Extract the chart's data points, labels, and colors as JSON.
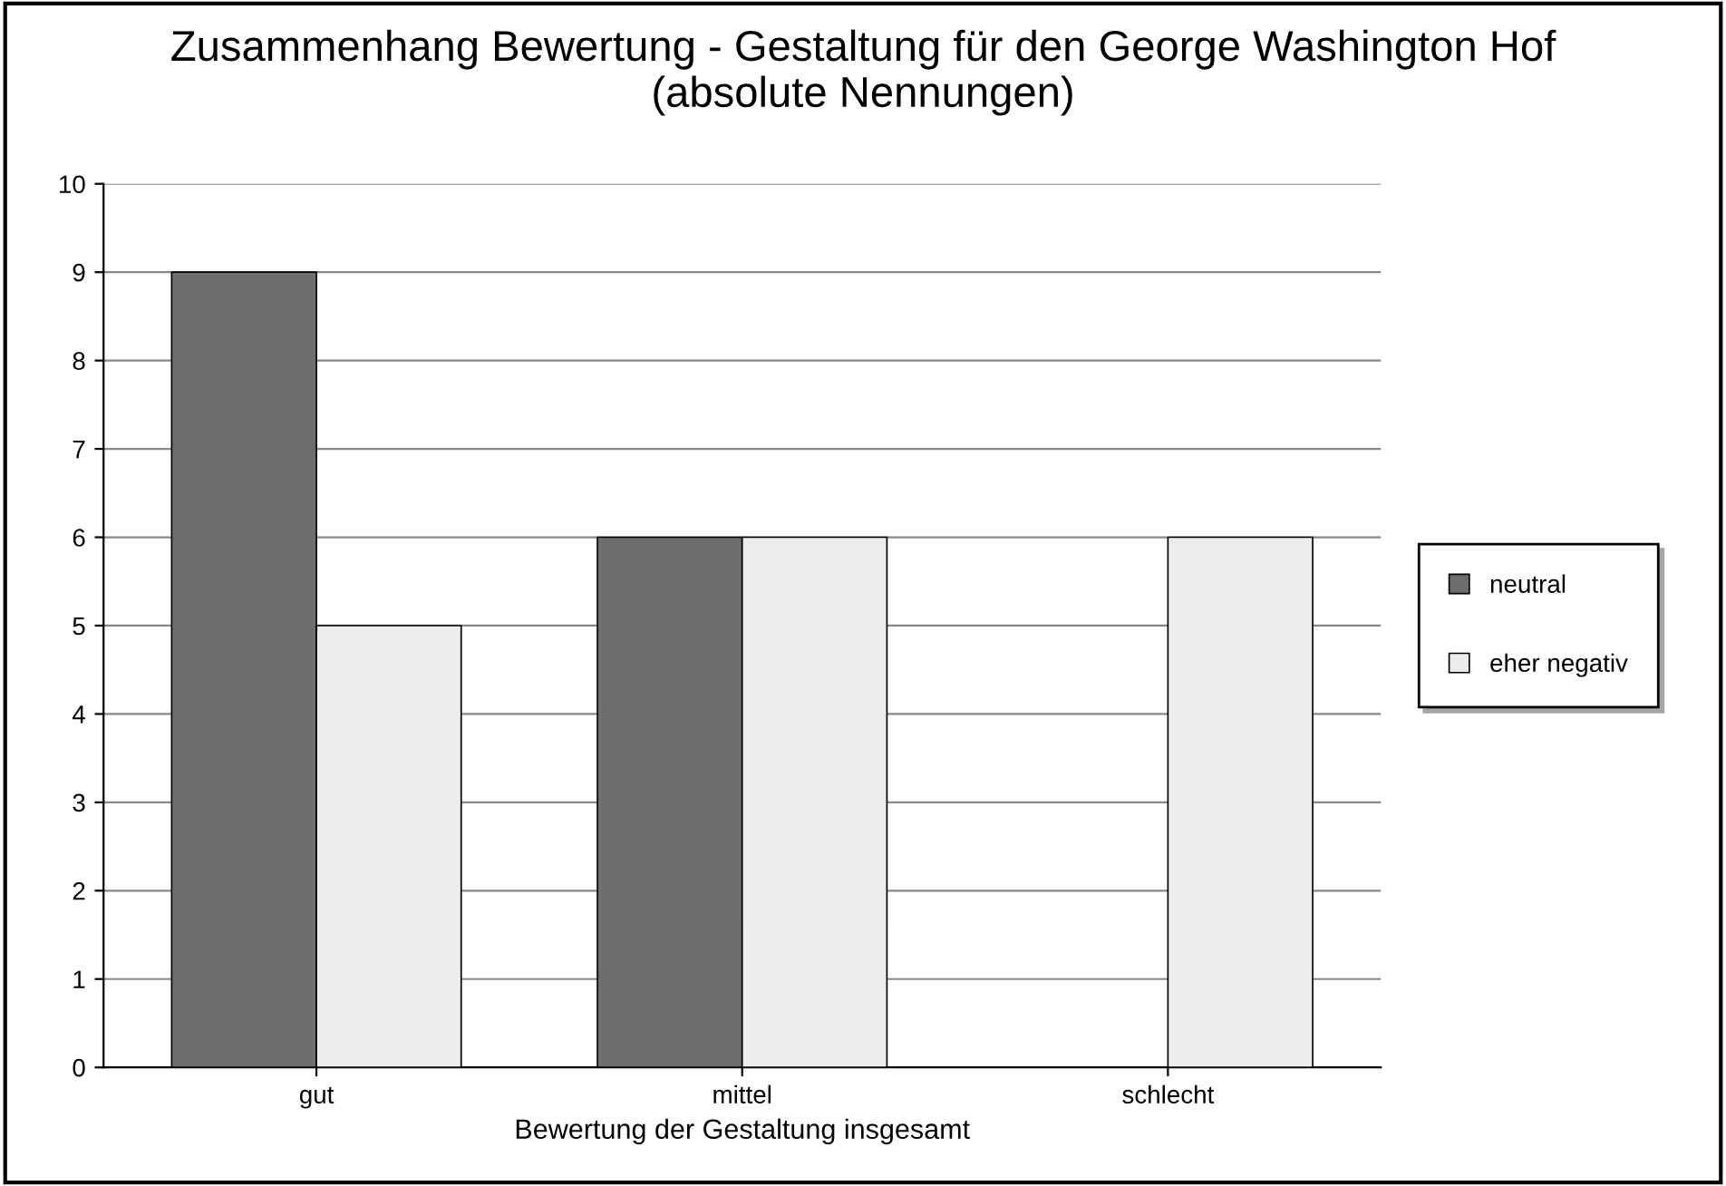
{
  "chart_data": {
    "type": "bar",
    "title": "Zusammenhang Bewertung - Gestaltung für den George Washington Hof\n(absolute Nennungen)",
    "xlabel": "Bewertung der Gestaltung insgesamt",
    "categories": [
      "gut",
      "mittel",
      "schlecht"
    ],
    "series": [
      {
        "name": "neutral",
        "color": "#6e6e6e",
        "values": [
          9,
          6,
          null
        ]
      },
      {
        "name": "eher negativ",
        "color": "#ececec",
        "values": [
          5,
          6,
          6
        ]
      }
    ],
    "ylim": [
      0,
      10
    ],
    "yticks": [
      0,
      1,
      2,
      3,
      4,
      5,
      6,
      7,
      8,
      9,
      10
    ],
    "grid": "y",
    "legend": "right"
  }
}
